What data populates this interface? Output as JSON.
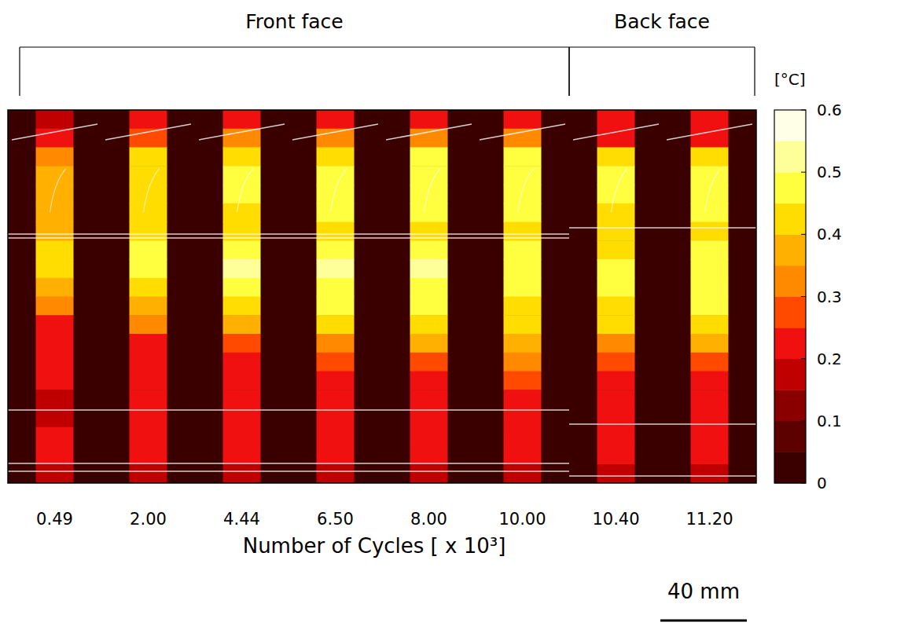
{
  "chart_data": {
    "type": "heatmap",
    "x_label": "Number of Cycles [ x 10³]",
    "categories": [
      "0.49",
      "2.00",
      "4.44",
      "6.50",
      "8.00",
      "10.00",
      "10.40",
      "11.20"
    ],
    "groups": [
      {
        "label": "Front face",
        "count": 6
      },
      {
        "label": "Back face",
        "count": 2
      }
    ],
    "cells": [
      [
        0.18,
        0.22,
        0.33,
        0.38,
        0.36,
        0.38,
        0.36,
        0.4,
        0.42,
        0.38,
        0.33,
        0.24,
        0.22,
        0.2,
        0.2,
        0.19,
        0.18,
        0.2,
        0.22,
        0.15
      ],
      [
        0.2,
        0.28,
        0.42,
        0.44,
        0.42,
        0.43,
        0.4,
        0.45,
        0.46,
        0.42,
        0.38,
        0.3,
        0.24,
        0.22,
        0.21,
        0.2,
        0.2,
        0.21,
        0.22,
        0.15
      ],
      [
        0.22,
        0.3,
        0.44,
        0.46,
        0.45,
        0.44,
        0.42,
        0.48,
        0.52,
        0.48,
        0.42,
        0.36,
        0.26,
        0.23,
        0.22,
        0.21,
        0.2,
        0.21,
        0.22,
        0.16
      ],
      [
        0.22,
        0.3,
        0.44,
        0.47,
        0.46,
        0.45,
        0.43,
        0.48,
        0.52,
        0.49,
        0.45,
        0.42,
        0.3,
        0.25,
        0.23,
        0.22,
        0.21,
        0.22,
        0.22,
        0.16
      ],
      [
        0.22,
        0.32,
        0.45,
        0.47,
        0.46,
        0.45,
        0.44,
        0.48,
        0.5,
        0.48,
        0.45,
        0.43,
        0.36,
        0.28,
        0.24,
        0.22,
        0.21,
        0.22,
        0.22,
        0.16
      ],
      [
        0.22,
        0.32,
        0.45,
        0.48,
        0.47,
        0.46,
        0.44,
        0.47,
        0.48,
        0.47,
        0.44,
        0.42,
        0.36,
        0.3,
        0.25,
        0.23,
        0.22,
        0.22,
        0.22,
        0.16
      ],
      [
        0.2,
        0.22,
        0.4,
        0.46,
        0.47,
        0.44,
        0.42,
        0.44,
        0.46,
        0.45,
        0.44,
        0.42,
        0.34,
        0.25,
        0.23,
        0.22,
        0.22,
        0.22,
        0.2,
        0.18
      ],
      [
        0.2,
        0.22,
        0.42,
        0.48,
        0.47,
        0.46,
        0.44,
        0.45,
        0.47,
        0.46,
        0.45,
        0.43,
        0.36,
        0.26,
        0.24,
        0.22,
        0.22,
        0.22,
        0.2,
        0.18
      ]
    ],
    "colorbar": {
      "label": "[°C]",
      "range": [
        0,
        0.6
      ],
      "ticks": [
        0,
        0.1,
        0.2,
        0.3,
        0.4,
        0.5,
        0.6
      ]
    },
    "scale_bar": "40 mm"
  }
}
